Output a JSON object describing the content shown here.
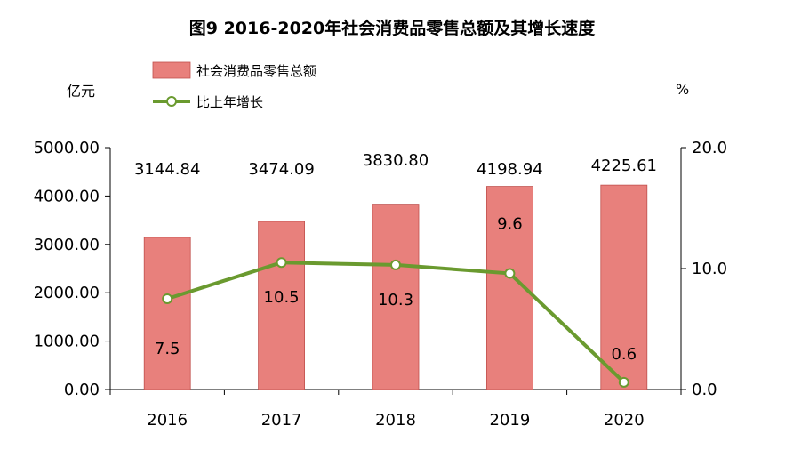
{
  "chart_data": {
    "type": "bar",
    "title": "图9  2016-2020年社会消费品零售总额及其增长速度",
    "categories": [
      "2016",
      "2017",
      "2018",
      "2019",
      "2020"
    ],
    "series": [
      {
        "name": "社会消费品零售总额",
        "type": "bar",
        "axis": "left",
        "values": [
          3144.84,
          3474.09,
          3830.8,
          4198.94,
          4225.61
        ],
        "value_labels": [
          "3144.84",
          "3474.09",
          "3830.80",
          "4198.94",
          "4225.61"
        ],
        "color": "#e8807c"
      },
      {
        "name": "比上年增长",
        "type": "line",
        "axis": "right",
        "values": [
          7.5,
          10.5,
          10.3,
          9.6,
          0.6
        ],
        "value_labels": [
          "7.5",
          "10.5",
          "10.3",
          "9.6",
          "0.6"
        ],
        "color": "#6a9a2f"
      }
    ],
    "y_left": {
      "unit": "亿元",
      "ylim": [
        0,
        5000
      ],
      "ticks": [
        "0.00",
        "1000.00",
        "2000.00",
        "3000.00",
        "4000.00",
        "5000.00"
      ],
      "tick_values": [
        0,
        1000,
        2000,
        3000,
        4000,
        5000
      ]
    },
    "y_right": {
      "unit": "%",
      "ylim": [
        0,
        20
      ],
      "ticks": [
        "0.0",
        "10.0",
        "20.0"
      ],
      "tick_values": [
        0,
        10,
        20
      ]
    },
    "legend_position": "top-left",
    "grid": false
  }
}
